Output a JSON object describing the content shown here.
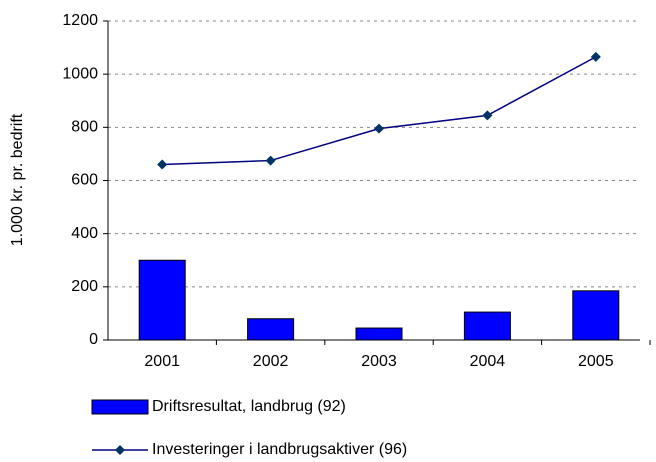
{
  "chart_data": {
    "type": "bar",
    "y_label": "1.000 kr. pr. bedrift",
    "categories": [
      "2001",
      "2002",
      "2003",
      "2004",
      "2005"
    ],
    "series": [
      {
        "name": "Driftsresultat, landbrug (92)",
        "type": "bar",
        "color": "#0000ff",
        "values": [
          300,
          80,
          45,
          105,
          185
        ]
      },
      {
        "name": "Investeringer i landbrugsaktiver (96)",
        "type": "line",
        "color": "#000080",
        "values": [
          660,
          675,
          795,
          845,
          1065
        ]
      }
    ],
    "ylim": [
      0,
      1200
    ],
    "yticks": [
      0,
      200,
      400,
      600,
      800,
      1000,
      1200
    ],
    "grid": true
  }
}
